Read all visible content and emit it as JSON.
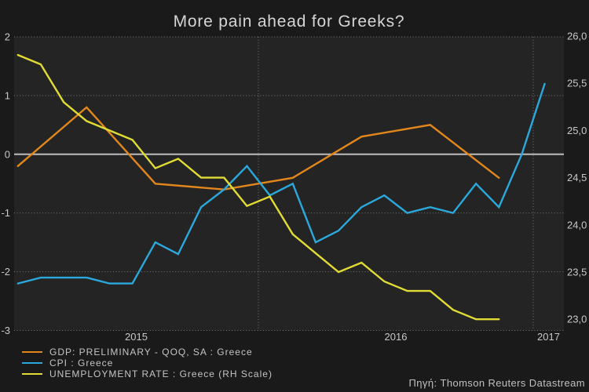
{
  "header": {
    "title": "More pain ahead for Greeks?"
  },
  "footer": {
    "source": "Πηγή: Thomson Reuters Datastream"
  },
  "colors": {
    "background": "#1a1a1a",
    "plot_background": "#242424",
    "grid_dotted": "#787878",
    "zero_line": "#bdbdbd",
    "axis_text": "#c8c8c8",
    "gdp_orange": "#e2871c",
    "cpi_blue": "#2ba8dc",
    "unemployment_yellow": "#e0dc34"
  },
  "chart_data": {
    "type": "line",
    "title": "More pain ahead for Greeks?",
    "grid": "dotted horizontal at left-axis integers, dotted vertical at year starts",
    "legend_position": "bottom-left",
    "left_axis": {
      "range": [
        -3,
        2
      ],
      "ticks": [
        {
          "label": "2",
          "value": 2
        },
        {
          "label": "1",
          "value": 1
        },
        {
          "label": "0",
          "value": 0
        },
        {
          "label": "-1",
          "value": -1
        },
        {
          "label": "-2",
          "value": -2
        },
        {
          "label": "-3",
          "value": -3
        }
      ],
      "zero_line_value": 0
    },
    "right_axis": {
      "range": [
        23,
        26
      ],
      "ticks": [
        {
          "label": "26,0",
          "value": 26.0
        },
        {
          "label": "25,5",
          "value": 25.5
        },
        {
          "label": "25,0",
          "value": 25.0
        },
        {
          "label": "24,5",
          "value": 24.5
        },
        {
          "label": "24,0",
          "value": 24.0
        },
        {
          "label": "23,5",
          "value": 23.5
        },
        {
          "label": "23,0",
          "value": 23.0
        }
      ]
    },
    "x_axis": {
      "tick_labels": [
        "2015",
        "2016",
        "2017"
      ],
      "year_boundary_month_indices": [
        12,
        24
      ],
      "note": "month index 0 = January 2015; data points plotted at mid-month"
    },
    "series": [
      {
        "id": "gdp",
        "name": "GDP: PRELIMINARY - QOQ, SA : Greece",
        "color": "#e2871c",
        "axis": "left",
        "start_month_index": 1,
        "month_step": 3,
        "periods": [
          "2015 Q1",
          "2015 Q2",
          "2015 Q3",
          "2015 Q4",
          "2016 Q1",
          "2016 Q2",
          "2016 Q3",
          "2016 Q4"
        ],
        "values": [
          -0.2,
          0.8,
          -0.5,
          -0.6,
          -0.4,
          0.3,
          0.5,
          -0.4
        ]
      },
      {
        "id": "cpi",
        "name": "CPI : Greece",
        "color": "#2ba8dc",
        "axis": "left",
        "start_month_index": 1,
        "month_step": 1,
        "periods": [
          "2015-02",
          "2015-03",
          "2015-04",
          "2015-05",
          "2015-06",
          "2015-07",
          "2015-08",
          "2015-09",
          "2015-10",
          "2015-11",
          "2015-12",
          "2016-01",
          "2016-02",
          "2016-03",
          "2016-04",
          "2016-05",
          "2016-06",
          "2016-07",
          "2016-08",
          "2016-09",
          "2016-10",
          "2016-11",
          "2016-12",
          "2017-01"
        ],
        "values": [
          -2.2,
          -2.1,
          -2.1,
          -2.1,
          -2.2,
          -2.2,
          -1.5,
          -1.7,
          -0.9,
          -0.6,
          -0.2,
          -0.7,
          -0.5,
          -1.5,
          -1.3,
          -0.9,
          -0.7,
          -1.0,
          -0.9,
          -1.0,
          -0.5,
          -0.9,
          0.0,
          1.2
        ]
      },
      {
        "id": "unemployment",
        "name": "UNEMPLOYMENT RATE : Greece (RH Scale)",
        "color": "#e0dc34",
        "axis": "right",
        "start_month_index": 1,
        "month_step": 1,
        "periods": [
          "2015-02",
          "2015-03",
          "2015-04",
          "2015-05",
          "2015-06",
          "2015-07",
          "2015-08",
          "2015-09",
          "2015-10",
          "2015-11",
          "2015-12",
          "2016-01",
          "2016-02",
          "2016-03",
          "2016-04",
          "2016-05",
          "2016-06",
          "2016-07",
          "2016-08",
          "2016-09",
          "2016-10",
          "2016-11"
        ],
        "values": [
          25.8,
          25.7,
          25.3,
          25.1,
          25.0,
          24.9,
          24.6,
          24.7,
          24.5,
          24.5,
          24.2,
          24.3,
          23.9,
          23.7,
          23.5,
          23.6,
          23.4,
          23.3,
          23.3,
          23.1,
          23.0,
          23.0
        ]
      }
    ]
  },
  "legend": {
    "items": [
      {
        "series": "gdp"
      },
      {
        "series": "cpi"
      },
      {
        "series": "unemployment"
      }
    ]
  }
}
